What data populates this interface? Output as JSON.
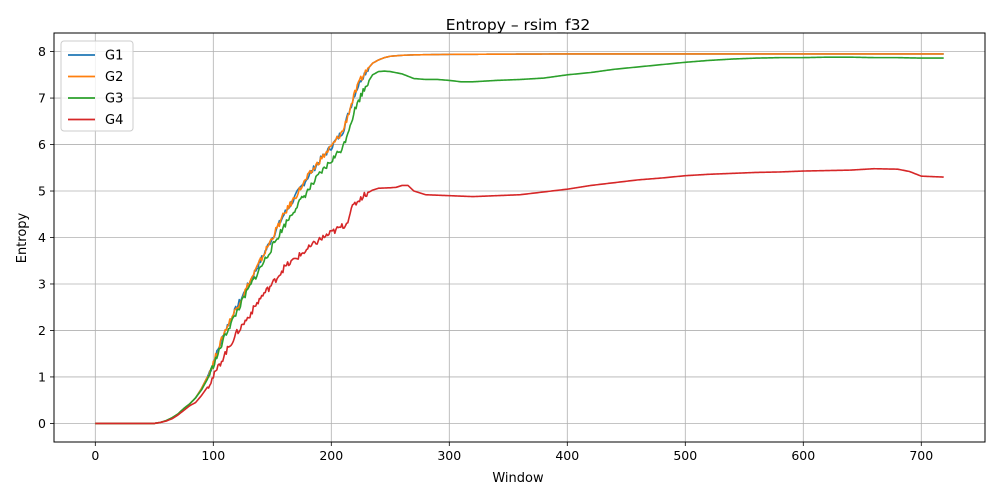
{
  "chart_data": {
    "type": "line",
    "title": "Entropy – rsim_f32",
    "xlabel": "Window",
    "ylabel": "Entropy",
    "xlim": [
      -35,
      754
    ],
    "ylim": [
      -0.4,
      8.4
    ],
    "xticks": [
      0,
      100,
      200,
      300,
      400,
      500,
      600,
      700
    ],
    "yticks": [
      0,
      1,
      2,
      3,
      4,
      5,
      6,
      7,
      8
    ],
    "grid": true,
    "legend_position": "upper-left",
    "series": [
      {
        "name": "G1",
        "color": "#1f77b4",
        "x": [
          0,
          50,
          55,
          60,
          65,
          70,
          75,
          80,
          85,
          90,
          95,
          100,
          105,
          110,
          120,
          130,
          140,
          150,
          160,
          170,
          180,
          190,
          200,
          210,
          215,
          220,
          225,
          230,
          235,
          240,
          245,
          250,
          260,
          270,
          300,
          400,
          500,
          600,
          700,
          719
        ],
        "y": [
          0,
          0,
          0.02,
          0.06,
          0.12,
          0.2,
          0.32,
          0.42,
          0.55,
          0.75,
          1.0,
          1.3,
          1.65,
          2.0,
          2.5,
          3.0,
          3.5,
          4.0,
          4.5,
          4.9,
          5.3,
          5.65,
          5.95,
          6.3,
          6.7,
          7.1,
          7.4,
          7.6,
          7.75,
          7.82,
          7.87,
          7.9,
          7.92,
          7.93,
          7.94,
          7.95,
          7.95,
          7.95,
          7.95,
          7.95
        ]
      },
      {
        "name": "G2",
        "color": "#ff7f0e",
        "x": [
          0,
          50,
          55,
          60,
          65,
          70,
          75,
          80,
          85,
          90,
          95,
          100,
          105,
          110,
          120,
          130,
          140,
          150,
          160,
          170,
          180,
          190,
          200,
          210,
          215,
          220,
          225,
          230,
          235,
          240,
          245,
          250,
          260,
          270,
          300,
          400,
          500,
          600,
          700,
          719
        ],
        "y": [
          0,
          0,
          0.02,
          0.06,
          0.12,
          0.2,
          0.32,
          0.42,
          0.55,
          0.75,
          1.0,
          1.3,
          1.65,
          2.0,
          2.5,
          3.0,
          3.5,
          4.0,
          4.5,
          4.9,
          5.3,
          5.65,
          5.95,
          6.3,
          6.7,
          7.1,
          7.4,
          7.6,
          7.75,
          7.82,
          7.87,
          7.9,
          7.92,
          7.93,
          7.94,
          7.95,
          7.95,
          7.95,
          7.95,
          7.95
        ]
      },
      {
        "name": "G3",
        "color": "#2ca02c",
        "x": [
          0,
          50,
          55,
          60,
          65,
          70,
          75,
          80,
          85,
          90,
          95,
          100,
          105,
          110,
          120,
          130,
          140,
          150,
          160,
          170,
          180,
          190,
          200,
          210,
          215,
          220,
          225,
          230,
          235,
          240,
          245,
          250,
          260,
          270,
          280,
          290,
          300,
          310,
          320,
          340,
          360,
          380,
          400,
          420,
          440,
          460,
          480,
          500,
          520,
          540,
          560,
          580,
          600,
          620,
          640,
          660,
          680,
          700,
          719
        ],
        "y": [
          0,
          0,
          0.02,
          0.06,
          0.12,
          0.2,
          0.32,
          0.42,
          0.55,
          0.72,
          0.95,
          1.25,
          1.55,
          1.9,
          2.4,
          2.9,
          3.35,
          3.8,
          4.25,
          4.65,
          5.0,
          5.35,
          5.65,
          5.95,
          6.35,
          6.75,
          7.05,
          7.3,
          7.5,
          7.57,
          7.58,
          7.57,
          7.52,
          7.42,
          7.4,
          7.4,
          7.38,
          7.35,
          7.35,
          7.38,
          7.4,
          7.43,
          7.5,
          7.55,
          7.62,
          7.67,
          7.72,
          7.77,
          7.81,
          7.84,
          7.86,
          7.87,
          7.87,
          7.88,
          7.88,
          7.87,
          7.87,
          7.86,
          7.86
        ]
      },
      {
        "name": "G4",
        "color": "#d62728",
        "x": [
          0,
          50,
          55,
          60,
          65,
          70,
          75,
          80,
          85,
          90,
          95,
          100,
          105,
          110,
          120,
          130,
          140,
          150,
          160,
          170,
          180,
          190,
          200,
          210,
          213,
          216,
          220,
          225,
          230,
          235,
          240,
          250,
          255,
          260,
          265,
          270,
          280,
          300,
          320,
          340,
          360,
          380,
          400,
          420,
          440,
          460,
          480,
          500,
          520,
          540,
          560,
          580,
          600,
          620,
          640,
          660,
          680,
          690,
          700,
          719
        ],
        "y": [
          0,
          0,
          0.02,
          0.05,
          0.1,
          0.18,
          0.28,
          0.38,
          0.45,
          0.6,
          0.78,
          1.0,
          1.25,
          1.5,
          1.95,
          2.3,
          2.7,
          3.0,
          3.35,
          3.55,
          3.75,
          3.95,
          4.1,
          4.25,
          4.3,
          4.55,
          4.72,
          4.85,
          4.95,
          5.02,
          5.06,
          5.07,
          5.08,
          5.12,
          5.12,
          5.0,
          4.92,
          4.9,
          4.88,
          4.9,
          4.92,
          4.98,
          5.04,
          5.12,
          5.18,
          5.24,
          5.28,
          5.33,
          5.36,
          5.38,
          5.4,
          5.41,
          5.43,
          5.44,
          5.45,
          5.48,
          5.47,
          5.42,
          5.32,
          5.3
        ]
      }
    ]
  }
}
